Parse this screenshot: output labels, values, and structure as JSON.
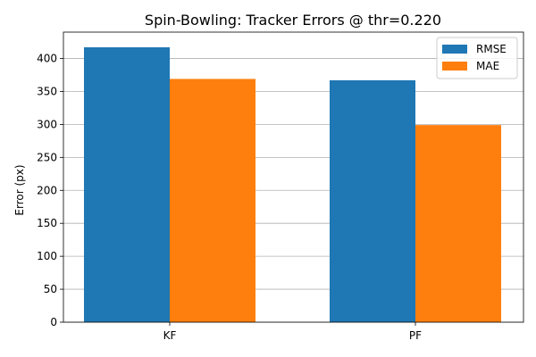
{
  "chart_data": {
    "type": "bar",
    "title": "Spin-Bowling: Tracker Errors @ thr=0.220",
    "xlabel": "",
    "ylabel": "Error (px)",
    "categories": [
      "KF",
      "PF"
    ],
    "series": [
      {
        "name": "RMSE",
        "values": [
          417,
          367
        ],
        "color": "#1f77b4"
      },
      {
        "name": "MAE",
        "values": [
          369,
          299
        ],
        "color": "#ff7f0e"
      }
    ],
    "ylim": [
      0,
      440
    ],
    "yticks": [
      0,
      50,
      100,
      150,
      200,
      250,
      300,
      350,
      400
    ],
    "grid": "y",
    "legend_position": "top-right"
  }
}
